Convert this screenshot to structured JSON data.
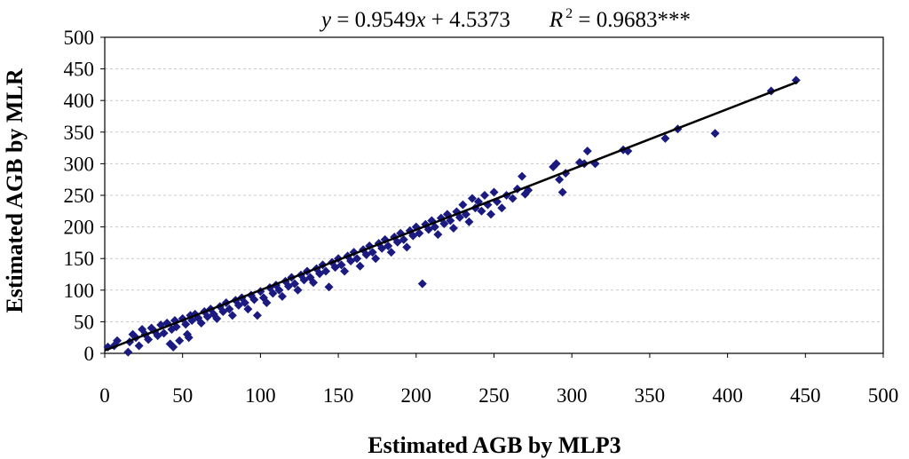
{
  "chart_data": {
    "type": "scatter",
    "xlabel": "Estimated AGB by MLP3",
    "ylabel": "Estimated AGB by MLR",
    "xlim": [
      0,
      500
    ],
    "ylim": [
      0,
      500
    ],
    "xticks": [
      0,
      50,
      100,
      150,
      200,
      250,
      300,
      350,
      400,
      450,
      500
    ],
    "yticks": [
      0,
      50,
      100,
      150,
      200,
      250,
      300,
      350,
      400,
      450,
      500
    ],
    "grid": true,
    "marker_color": "#1a1a80",
    "equation": {
      "y_var": "y",
      "equals": " = 0.9549",
      "x_var": "x",
      "intercept": " + 4.5373",
      "r_var": "R",
      "r_exp": "2",
      "r_value": " = 0.9683***"
    },
    "trendline": {
      "slope": 0.9549,
      "intercept": 4.5373,
      "x_range": [
        0,
        445
      ]
    },
    "series": [
      {
        "points": [
          [
            2,
            10
          ],
          [
            6,
            12
          ],
          [
            8,
            20
          ],
          [
            15,
            2
          ],
          [
            16,
            18
          ],
          [
            18,
            30
          ],
          [
            20,
            25
          ],
          [
            22,
            12
          ],
          [
            24,
            38
          ],
          [
            26,
            30
          ],
          [
            28,
            22
          ],
          [
            30,
            40
          ],
          [
            32,
            35
          ],
          [
            34,
            28
          ],
          [
            36,
            45
          ],
          [
            38,
            32
          ],
          [
            40,
            48
          ],
          [
            42,
            15
          ],
          [
            43,
            38
          ],
          [
            44,
            10
          ],
          [
            45,
            52
          ],
          [
            46,
            42
          ],
          [
            48,
            20
          ],
          [
            50,
            55
          ],
          [
            52,
            46
          ],
          [
            53,
            30
          ],
          [
            54,
            25
          ],
          [
            55,
            60
          ],
          [
            56,
            52
          ],
          [
            58,
            62
          ],
          [
            60,
            56
          ],
          [
            62,
            48
          ],
          [
            64,
            66
          ],
          [
            66,
            58
          ],
          [
            68,
            70
          ],
          [
            70,
            62
          ],
          [
            72,
            55
          ],
          [
            74,
            74
          ],
          [
            76,
            66
          ],
          [
            78,
            80
          ],
          [
            80,
            70
          ],
          [
            82,
            60
          ],
          [
            84,
            84
          ],
          [
            86,
            76
          ],
          [
            88,
            88
          ],
          [
            90,
            80
          ],
          [
            92,
            70
          ],
          [
            94,
            92
          ],
          [
            96,
            85
          ],
          [
            98,
            60
          ],
          [
            100,
            98
          ],
          [
            102,
            88
          ],
          [
            104,
            80
          ],
          [
            106,
            104
          ],
          [
            108,
            95
          ],
          [
            110,
            108
          ],
          [
            112,
            100
          ],
          [
            114,
            90
          ],
          [
            116,
            114
          ],
          [
            118,
            106
          ],
          [
            120,
            120
          ],
          [
            122,
            110
          ],
          [
            124,
            100
          ],
          [
            126,
            124
          ],
          [
            128,
            116
          ],
          [
            130,
            130
          ],
          [
            132,
            120
          ],
          [
            134,
            112
          ],
          [
            136,
            134
          ],
          [
            138,
            126
          ],
          [
            140,
            140
          ],
          [
            142,
            130
          ],
          [
            144,
            105
          ],
          [
            146,
            144
          ],
          [
            148,
            136
          ],
          [
            150,
            150
          ],
          [
            152,
            140
          ],
          [
            154,
            130
          ],
          [
            156,
            154
          ],
          [
            158,
            146
          ],
          [
            160,
            160
          ],
          [
            162,
            150
          ],
          [
            164,
            138
          ],
          [
            166,
            164
          ],
          [
            168,
            156
          ],
          [
            170,
            170
          ],
          [
            172,
            160
          ],
          [
            174,
            150
          ],
          [
            176,
            174
          ],
          [
            178,
            166
          ],
          [
            180,
            180
          ],
          [
            182,
            170
          ],
          [
            184,
            160
          ],
          [
            186,
            184
          ],
          [
            188,
            176
          ],
          [
            190,
            190
          ],
          [
            192,
            180
          ],
          [
            194,
            168
          ],
          [
            196,
            194
          ],
          [
            198,
            186
          ],
          [
            200,
            200
          ],
          [
            202,
            190
          ],
          [
            204,
            110
          ],
          [
            206,
            204
          ],
          [
            208,
            196
          ],
          [
            210,
            210
          ],
          [
            212,
            200
          ],
          [
            214,
            188
          ],
          [
            216,
            214
          ],
          [
            218,
            205
          ],
          [
            220,
            220
          ],
          [
            222,
            210
          ],
          [
            224,
            198
          ],
          [
            226,
            224
          ],
          [
            228,
            215
          ],
          [
            230,
            235
          ],
          [
            232,
            220
          ],
          [
            234,
            208
          ],
          [
            236,
            245
          ],
          [
            238,
            230
          ],
          [
            240,
            240
          ],
          [
            242,
            225
          ],
          [
            244,
            250
          ],
          [
            246,
            235
          ],
          [
            248,
            220
          ],
          [
            250,
            255
          ],
          [
            252,
            240
          ],
          [
            255,
            230
          ],
          [
            258,
            250
          ],
          [
            262,
            245
          ],
          [
            265,
            260
          ],
          [
            268,
            280
          ],
          [
            270,
            252
          ],
          [
            272,
            258
          ],
          [
            288,
            295
          ],
          [
            290,
            300
          ],
          [
            292,
            275
          ],
          [
            294,
            255
          ],
          [
            296,
            285
          ],
          [
            305,
            302
          ],
          [
            308,
            300
          ],
          [
            310,
            320
          ],
          [
            315,
            300
          ],
          [
            333,
            322
          ],
          [
            336,
            320
          ],
          [
            360,
            340
          ],
          [
            368,
            355
          ],
          [
            392,
            348
          ],
          [
            428,
            415
          ],
          [
            444,
            432
          ]
        ]
      }
    ]
  }
}
